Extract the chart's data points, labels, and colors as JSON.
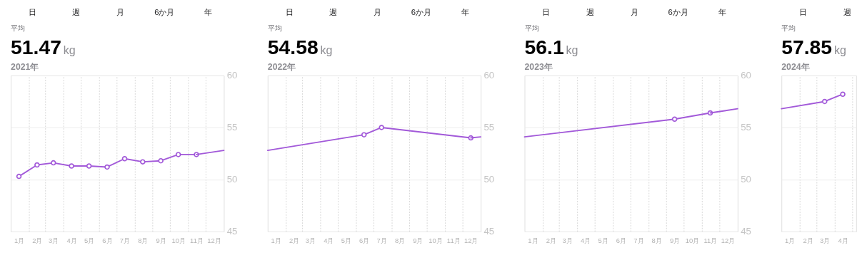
{
  "chart_data": [
    {
      "type": "line",
      "title": "51.47",
      "ylabel": "kg",
      "subtitle": "2021年",
      "annotations": [
        "日",
        "週",
        "月",
        "6か月",
        "年",
        "平均"
      ],
      "grid": true,
      "xlim": [
        "2021-01-01",
        "2022-01-01"
      ],
      "ylim": [
        45,
        60
      ],
      "yticks": [
        45,
        50,
        55,
        60
      ],
      "xticks": [
        {
          "value": "2021-02-01",
          "label": null
        },
        {
          "value": "2021-03-01",
          "label": null
        },
        {
          "value": "2021-04-01",
          "label": null
        },
        {
          "value": "2021-05-01",
          "label": null
        },
        {
          "value": "2021-06-01",
          "label": null
        },
        {
          "value": "2021-07-01",
          "label": null
        },
        {
          "value": "2021-08-01",
          "label": null
        },
        {
          "value": "2021-09-01",
          "label": null
        },
        {
          "value": "2021-10-01",
          "label": null
        },
        {
          "value": "2021-11-01",
          "label": null
        },
        {
          "value": "2021-12-01",
          "label": null
        },
        {
          "value": "2021-01-15",
          "label": "1月"
        },
        {
          "value": "2021-02-15",
          "label": "2月"
        },
        {
          "value": "2021-03-15",
          "label": "3月"
        },
        {
          "value": "2021-04-15",
          "label": "4月"
        },
        {
          "value": "2021-05-15",
          "label": "5月"
        },
        {
          "value": "2021-06-15",
          "label": "6月"
        },
        {
          "value": "2021-07-15",
          "label": "7月"
        },
        {
          "value": "2021-08-15",
          "label": "8月"
        },
        {
          "value": "2021-09-15",
          "label": "9月"
        },
        {
          "value": "2021-10-15",
          "label": "10月"
        },
        {
          "value": "2021-11-15",
          "label": "11月"
        },
        {
          "value": "2021-12-15",
          "label": "12月"
        }
      ],
      "series": [
        {
          "color": "#a259d9",
          "marker": "circle",
          "x": [
            "2021-01-15",
            "2021-02-15",
            "2021-03-15",
            "2021-04-15",
            "2021-05-15",
            "2021-06-15",
            "2021-07-15",
            "2021-08-15",
            "2021-09-15",
            "2021-10-15",
            "2021-11-15"
          ],
          "values": [
            50.3,
            51.4,
            51.6,
            51.3,
            51.3,
            51.2,
            52.0,
            51.7,
            51.8,
            52.4,
            52.4
          ]
        },
        {
          "color": "#a259d9",
          "marker": "none",
          "x": [
            "2021-11-15",
            "2022-01-01"
          ],
          "values": [
            52.4,
            52.8
          ]
        }
      ]
    },
    {
      "type": "line",
      "title": "54.58",
      "ylabel": "kg",
      "subtitle": "2022年",
      "annotations": [
        "日",
        "週",
        "月",
        "6か月",
        "年",
        "平均"
      ],
      "grid": true,
      "xlim": [
        "2022-01-01",
        "2023-01-01"
      ],
      "ylim": [
        45,
        60
      ],
      "yticks": [
        45,
        50,
        55,
        60
      ],
      "xticks": [
        {
          "value": "2022-02-01",
          "label": null
        },
        {
          "value": "2022-03-01",
          "label": null
        },
        {
          "value": "2022-04-01",
          "label": null
        },
        {
          "value": "2022-05-01",
          "label": null
        },
        {
          "value": "2022-06-01",
          "label": null
        },
        {
          "value": "2022-07-01",
          "label": null
        },
        {
          "value": "2022-08-01",
          "label": null
        },
        {
          "value": "2022-09-01",
          "label": null
        },
        {
          "value": "2022-10-01",
          "label": null
        },
        {
          "value": "2022-11-01",
          "label": null
        },
        {
          "value": "2022-12-01",
          "label": null
        },
        {
          "value": "2022-01-15",
          "label": "1月"
        },
        {
          "value": "2022-02-15",
          "label": "2月"
        },
        {
          "value": "2022-03-15",
          "label": "3月"
        },
        {
          "value": "2022-04-15",
          "label": "4月"
        },
        {
          "value": "2022-05-15",
          "label": "5月"
        },
        {
          "value": "2022-06-15",
          "label": "6月"
        },
        {
          "value": "2022-07-15",
          "label": "7月"
        },
        {
          "value": "2022-08-15",
          "label": "8月"
        },
        {
          "value": "2022-09-15",
          "label": "9月"
        },
        {
          "value": "2022-10-15",
          "label": "10月"
        },
        {
          "value": "2022-11-15",
          "label": "11月"
        },
        {
          "value": "2022-12-15",
          "label": "12月"
        }
      ],
      "series": [
        {
          "color": "#a259d9",
          "marker": "none",
          "x": [
            "2022-01-01",
            "2022-06-15"
          ],
          "values": [
            52.8,
            54.3
          ]
        },
        {
          "color": "#a259d9",
          "marker": "circle",
          "x": [
            "2022-06-15",
            "2022-07-15",
            "2022-12-15"
          ],
          "values": [
            54.3,
            55.0,
            54.0
          ]
        },
        {
          "color": "#a259d9",
          "marker": "none",
          "x": [
            "2022-12-15",
            "2023-01-01"
          ],
          "values": [
            54.0,
            54.1
          ]
        }
      ]
    },
    {
      "type": "line",
      "title": "56.1",
      "ylabel": "kg",
      "subtitle": "2023年",
      "annotations": [
        "日",
        "週",
        "月",
        "6か月",
        "年",
        "平均"
      ],
      "grid": true,
      "xlim": [
        "2023-01-01",
        "2024-01-01"
      ],
      "ylim": [
        45,
        60
      ],
      "yticks": [
        45,
        50,
        55,
        60
      ],
      "xticks": [
        {
          "value": "2023-02-01",
          "label": null
        },
        {
          "value": "2023-03-01",
          "label": null
        },
        {
          "value": "2023-04-01",
          "label": null
        },
        {
          "value": "2023-05-01",
          "label": null
        },
        {
          "value": "2023-06-01",
          "label": null
        },
        {
          "value": "2023-07-01",
          "label": null
        },
        {
          "value": "2023-08-01",
          "label": null
        },
        {
          "value": "2023-09-01",
          "label": null
        },
        {
          "value": "2023-10-01",
          "label": null
        },
        {
          "value": "2023-11-01",
          "label": null
        },
        {
          "value": "2023-12-01",
          "label": null
        },
        {
          "value": "2023-01-15",
          "label": "1月"
        },
        {
          "value": "2023-02-15",
          "label": "2月"
        },
        {
          "value": "2023-03-15",
          "label": "3月"
        },
        {
          "value": "2023-04-15",
          "label": "4月"
        },
        {
          "value": "2023-05-15",
          "label": "5月"
        },
        {
          "value": "2023-06-15",
          "label": "6月"
        },
        {
          "value": "2023-07-15",
          "label": "7月"
        },
        {
          "value": "2023-08-15",
          "label": "8月"
        },
        {
          "value": "2023-09-15",
          "label": "9月"
        },
        {
          "value": "2023-10-15",
          "label": "10月"
        },
        {
          "value": "2023-11-15",
          "label": "11月"
        },
        {
          "value": "2023-12-15",
          "label": "12月"
        }
      ],
      "series": [
        {
          "color": "#a259d9",
          "marker": "none",
          "x": [
            "2023-01-01",
            "2023-09-15"
          ],
          "values": [
            54.1,
            55.8
          ]
        },
        {
          "color": "#a259d9",
          "marker": "circle",
          "x": [
            "2023-09-15",
            "2023-11-15"
          ],
          "values": [
            55.8,
            56.4
          ]
        },
        {
          "color": "#a259d9",
          "marker": "none",
          "x": [
            "2023-11-15",
            "2024-01-01"
          ],
          "values": [
            56.4,
            56.8
          ]
        }
      ]
    },
    {
      "type": "line",
      "title": "57.85",
      "ylabel": "kg",
      "subtitle": "2024年",
      "annotations": [
        "日",
        "週",
        "平均"
      ],
      "grid": true,
      "tick_labels": "x",
      "xlim": [
        "2024-01-01",
        "2024-05-08"
      ],
      "ylim": [
        45,
        60
      ],
      "yticks": [
        45,
        50,
        55,
        60
      ],
      "xticks": [
        {
          "value": "2024-02-01",
          "label": null
        },
        {
          "value": "2024-03-01",
          "label": null
        },
        {
          "value": "2024-04-01",
          "label": null
        },
        {
          "value": "2024-05-01",
          "label": null
        },
        {
          "value": "2024-01-15",
          "label": "1月"
        },
        {
          "value": "2024-02-15",
          "label": "2月"
        },
        {
          "value": "2024-03-15",
          "label": "3月"
        },
        {
          "value": "2024-04-15",
          "label": "4月"
        }
      ],
      "series": [
        {
          "color": "#a259d9",
          "marker": "none",
          "x": [
            "2024-01-01",
            "2024-03-15"
          ],
          "values": [
            56.8,
            57.5
          ]
        },
        {
          "color": "#a259d9",
          "marker": "circle",
          "x": [
            "2024-03-15",
            "2024-04-15"
          ],
          "values": [
            57.5,
            58.2
          ]
        }
      ]
    }
  ]
}
